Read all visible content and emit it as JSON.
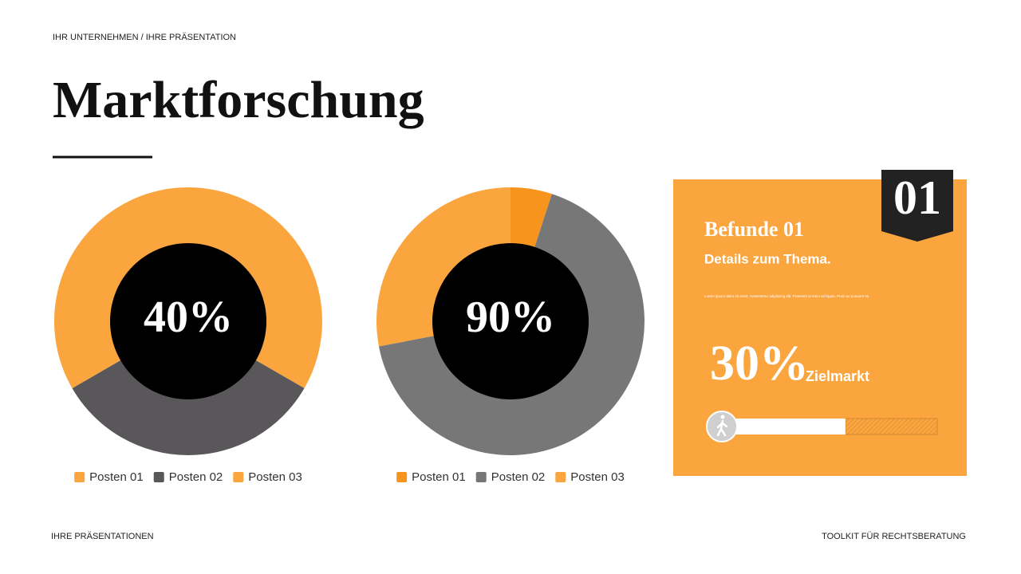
{
  "header": "IHR UNTERNEHMEN / IHRE PRÄSENTATION",
  "title": "Marktforschung",
  "chart_data": [
    {
      "type": "donut",
      "center_label": "40%",
      "categories": [
        "Posten 01",
        "Posten 02",
        "Posten 03"
      ],
      "values": [
        33,
        33,
        33
      ],
      "colors": [
        "#fba53f",
        "#59575a",
        "#fba53f"
      ]
    },
    {
      "type": "donut",
      "center_label": "90%",
      "categories": [
        "Posten 01",
        "Posten 02",
        "Posten 03"
      ],
      "values": [
        5,
        67,
        28
      ],
      "colors": [
        "#f7941e",
        "#787778",
        "#fba53f"
      ]
    }
  ],
  "card": {
    "number": "01",
    "heading": "Befunde 01",
    "subheading": "Details zum Thema.",
    "body": "Lorem ipsum dolor sit amet, consectetur adipiscing elit. Praesent at enim vel ligula. Proin ac posuere mi.",
    "stat": "30%",
    "stat_label": "Zielmarkt"
  },
  "footer": {
    "left": "IHRE PRÄSENTATIONEN",
    "right": "TOOLKIT FÜR RECHTSBERATUNG"
  }
}
